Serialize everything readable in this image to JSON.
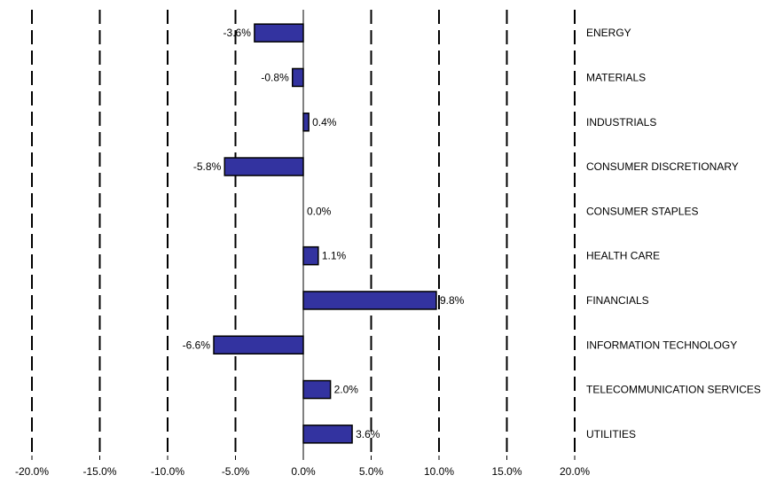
{
  "chart_data": {
    "type": "bar",
    "orientation": "horizontal",
    "categories": [
      "ENERGY",
      "MATERIALS",
      "INDUSTRIALS",
      "CONSUMER DISCRETIONARY",
      "CONSUMER STAPLES",
      "HEALTH CARE",
      "FINANCIALS",
      "INFORMATION TECHNOLOGY",
      "TELECOMMUNICATION SERVICES",
      "UTILITIES"
    ],
    "values": [
      -3.6,
      -0.8,
      0.4,
      -5.8,
      0.0,
      1.1,
      9.8,
      -6.6,
      2.0,
      3.6
    ],
    "value_labels": [
      "-3.6%",
      "-0.8%",
      "0.4%",
      "-5.8%",
      "0.0%",
      "1.1%",
      "9.8%",
      "-6.6%",
      "2.0%",
      "3.6%"
    ],
    "xlim": [
      -20,
      20
    ],
    "x_ticks": [
      -20,
      -15,
      -10,
      -5,
      0,
      5,
      10,
      15,
      20
    ],
    "x_tick_labels": [
      "-20.0%",
      "-15.0%",
      "-10.0%",
      "-5.0%",
      "0.0%",
      "5.0%",
      "10.0%",
      "15.0%",
      "20.0%"
    ],
    "grid": "vertical dashed",
    "category_labels_position": "right",
    "title": "",
    "xlabel": "",
    "ylabel": "",
    "bar_color": "#3333a0",
    "bar_edge_color": "#000000"
  }
}
